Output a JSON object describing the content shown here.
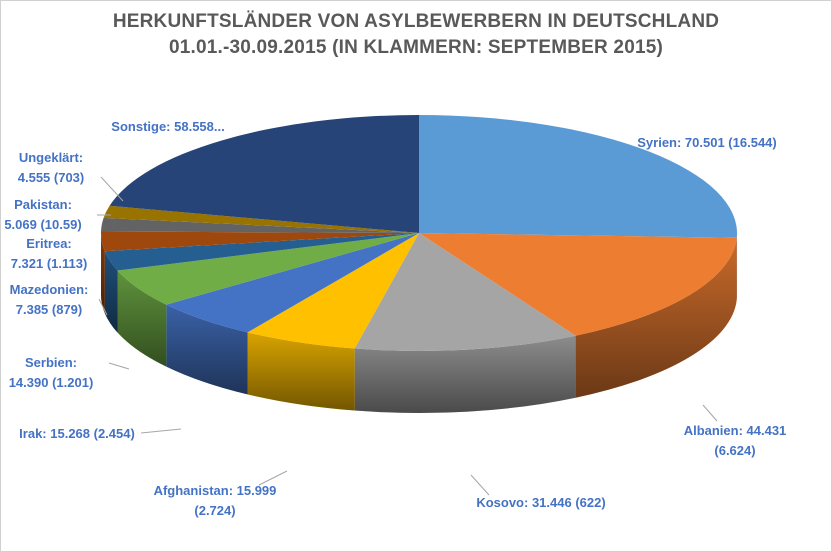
{
  "chart_data": {
    "type": "pie",
    "style": "3d",
    "title": [
      "HERKUNFTSLÄNDER VON ASYLBEWERBERN IN DEUTSCHLAND",
      "01.01.-30.09.2015 (IN KLAMMERN: SEPTEMBER 2015)"
    ],
    "slices": [
      {
        "name": "Syrien",
        "value": 70501,
        "label": [
          "Syrien: 70.501 (16.544)"
        ],
        "color": "#5b9bd5"
      },
      {
        "name": "Albanien",
        "value": 44431,
        "label": [
          "Albanien: 44.431",
          "(6.624)"
        ],
        "color": "#ed7d31"
      },
      {
        "name": "Kosovo",
        "value": 31446,
        "label": [
          "Kosovo: 31.446 (622)"
        ],
        "color": "#a5a5a5"
      },
      {
        "name": "Afghanistan",
        "value": 15999,
        "label": [
          "Afghanistan: 15.999",
          "(2.724)"
        ],
        "color": "#ffc000"
      },
      {
        "name": "Irak",
        "value": 15268,
        "label": [
          "Irak: 15.268 (2.454)"
        ],
        "color": "#4472c4"
      },
      {
        "name": "Serbien",
        "value": 14390,
        "label": [
          "Serbien:",
          "14.390 (1.201)"
        ],
        "color": "#70ad47"
      },
      {
        "name": "Mazedonien",
        "value": 7385,
        "label": [
          "Mazedonien:",
          "7.385 (879)"
        ],
        "color": "#255e91"
      },
      {
        "name": "Eritrea",
        "value": 7321,
        "label": [
          "Eritrea:",
          "7.321 (1.113)"
        ],
        "color": "#9e480e"
      },
      {
        "name": "Pakistan",
        "value": 5069,
        "label": [
          "Pakistan:",
          "5.069 (10.59)"
        ],
        "color": "#636363"
      },
      {
        "name": "Ungeklärt",
        "value": 4555,
        "label": [
          "Ungeklärt:",
          "4.555 (703)"
        ],
        "color": "#997300"
      },
      {
        "name": "Sonstige",
        "value": 58558,
        "label": [
          "Sonstige: 58.558..."
        ],
        "color": "#264478"
      }
    ]
  }
}
